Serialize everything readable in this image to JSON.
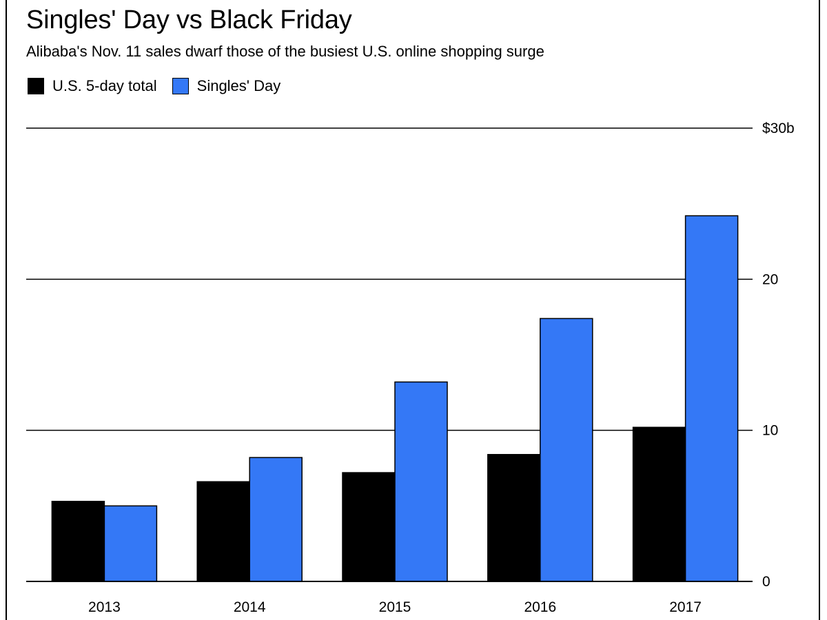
{
  "chart_data": {
    "type": "bar",
    "title": "Singles' Day vs Black Friday",
    "subtitle": "Alibaba's Nov. 11 sales dwarf those of the busiest U.S. online shopping surge",
    "categories": [
      "2013",
      "2014",
      "2015",
      "2016",
      "2017"
    ],
    "series": [
      {
        "name": "U.S. 5-day total",
        "color": "#000000",
        "values": [
          5.3,
          6.6,
          7.2,
          8.4,
          10.2
        ]
      },
      {
        "name": "Singles' Day",
        "color": "#3478f6",
        "values": [
          5.0,
          8.2,
          13.2,
          17.4,
          24.2
        ]
      }
    ],
    "y_ticks": [
      {
        "value": 0,
        "label": "0"
      },
      {
        "value": 10,
        "label": "10"
      },
      {
        "value": 20,
        "label": "20"
      },
      {
        "value": 30,
        "label": "$30b"
      }
    ],
    "ylim": [
      0,
      30
    ],
    "grid": true,
    "legend_position": "top-left"
  }
}
